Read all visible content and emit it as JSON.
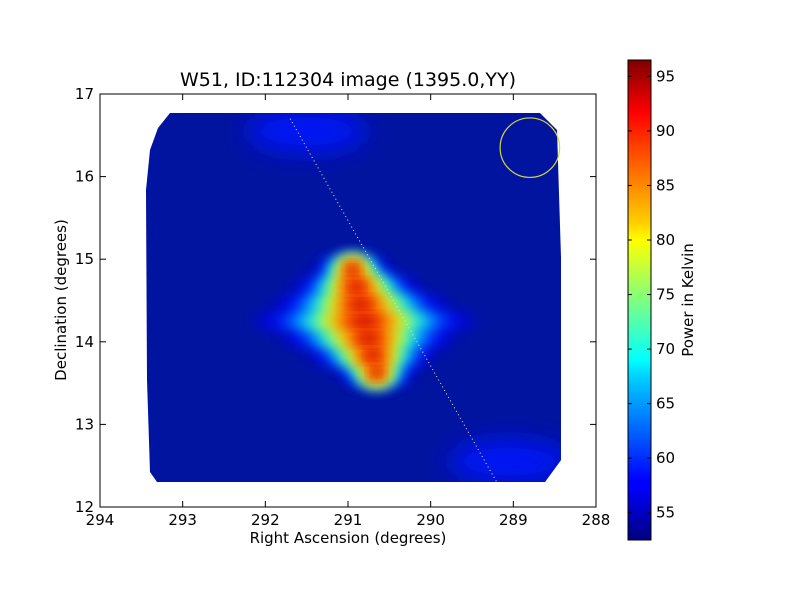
{
  "chart_data": {
    "type": "heatmap",
    "title": "W51, ID:112304 image (1395.0,YY)",
    "xlabel": "Right Ascension (degrees)",
    "ylabel": "Declination (degrees)",
    "xlim": [
      294,
      288
    ],
    "ylim": [
      12,
      17
    ],
    "x_ticks": [
      294,
      293,
      292,
      291,
      290,
      289,
      288
    ],
    "y_ticks": [
      12,
      13,
      14,
      15,
      16,
      17
    ],
    "x_tick_labels": [
      "294",
      "293",
      "292",
      "291",
      "290",
      "289",
      "288"
    ],
    "y_tick_labels": [
      "12",
      "13",
      "14",
      "15",
      "16",
      "17"
    ],
    "colorbar": {
      "label": "Power in Kelvin",
      "range": [
        52.5,
        96.5
      ],
      "ticks": [
        55,
        60,
        65,
        70,
        75,
        80,
        85,
        90,
        95
      ],
      "tick_labels": [
        "55",
        "60",
        "65",
        "70",
        "75",
        "80",
        "85",
        "90",
        "95"
      ],
      "colormap": "jet"
    },
    "image_extent": {
      "ra": [
        293.5,
        288.4
      ],
      "dec": [
        12.28,
        16.78
      ]
    },
    "background_level": 55,
    "source": {
      "ra": 290.8,
      "dec": 14.25,
      "peak": 95
    },
    "sidelobes": [
      {
        "ra": 291.5,
        "dec": 16.55,
        "level": 59
      },
      {
        "ra": 289.05,
        "dec": 12.55,
        "level": 59
      }
    ],
    "track_line": {
      "ra": [
        291.7,
        289.2
      ],
      "dec": [
        16.7,
        12.3
      ],
      "color": "#e8e8c8",
      "style": "dotted"
    },
    "circle": {
      "ra": 288.8,
      "dec": 16.35,
      "radius_deg": 0.36,
      "color": "#d6d640"
    }
  }
}
